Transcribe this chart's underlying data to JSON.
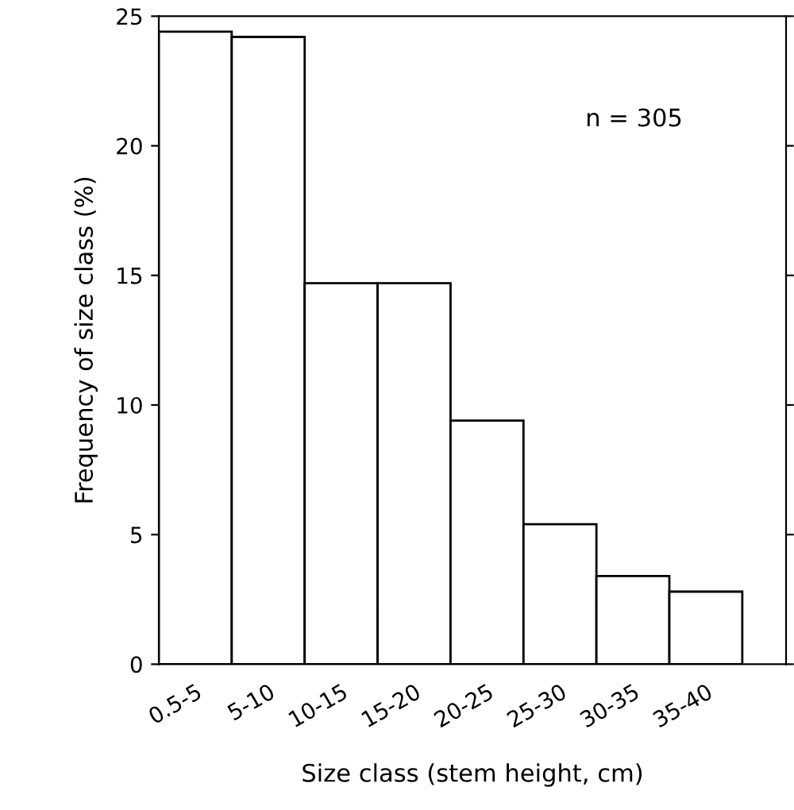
{
  "chart_data": {
    "type": "bar",
    "xlabel": "Size class (stem height, cm)",
    "ylabel": "Frequency of size class (%)",
    "categories": [
      "0.5-5",
      "5-10",
      "10-15",
      "15-20",
      "20-25",
      "25-30",
      "30-35",
      "35-40"
    ],
    "values": [
      24.4,
      24.2,
      14.7,
      14.7,
      9.4,
      5.4,
      3.4,
      2.8
    ],
    "color": "#ffffff",
    "ylim": [
      0,
      25
    ],
    "yticks": [
      0,
      5,
      10,
      15,
      20,
      25
    ],
    "grid": false,
    "annotations": [
      "n = 305"
    ]
  }
}
